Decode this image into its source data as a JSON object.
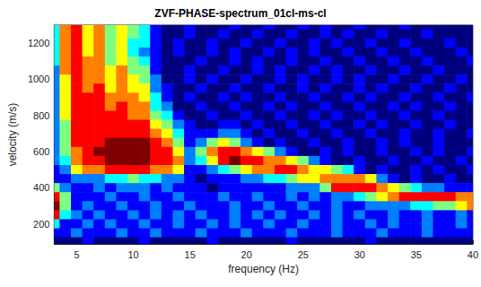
{
  "chart_data": {
    "type": "heatmap",
    "title": "ZVF-PHASE-spectrum_01cl-ms-cl",
    "x_label": "frequency (Hz)",
    "y_label": "velocity (m/s)",
    "x": [
      3,
      4,
      5,
      6,
      7,
      8,
      9,
      10,
      11,
      12,
      13,
      14,
      15,
      16,
      17,
      18,
      19,
      20,
      21,
      22,
      23,
      24,
      25,
      26,
      27,
      28,
      29,
      30,
      31,
      32,
      33,
      34,
      35,
      36,
      37,
      38,
      39,
      40
    ],
    "y": [
      1300,
      1250,
      1200,
      1150,
      1100,
      1050,
      1000,
      950,
      900,
      850,
      800,
      750,
      700,
      650,
      600,
      550,
      500,
      450,
      400,
      350,
      300,
      250,
      200,
      150,
      100
    ],
    "values": [
      [
        5,
        8,
        9,
        7,
        8,
        6,
        7,
        6,
        5,
        3,
        2,
        2,
        3,
        2,
        2,
        2,
        3,
        2,
        2,
        3,
        2,
        2,
        3,
        2,
        3,
        2,
        2,
        3,
        2,
        2,
        2,
        3,
        2,
        2,
        2,
        2,
        2,
        2
      ],
      [
        5,
        8,
        9,
        7,
        8,
        6,
        7,
        6,
        5,
        3,
        2,
        2,
        3,
        2,
        2,
        3,
        2,
        2,
        3,
        2,
        2,
        3,
        2,
        2,
        3,
        2,
        3,
        2,
        2,
        3,
        2,
        2,
        2,
        3,
        2,
        2,
        2,
        2
      ],
      [
        5,
        8,
        9,
        7,
        8,
        6,
        7,
        5,
        5,
        3,
        2,
        3,
        2,
        2,
        3,
        2,
        2,
        3,
        2,
        2,
        3,
        2,
        2,
        3,
        2,
        3,
        2,
        2,
        3,
        2,
        2,
        3,
        2,
        2,
        2,
        3,
        2,
        2
      ],
      [
        5,
        8,
        9,
        7,
        8,
        6,
        7,
        5,
        4,
        3,
        2,
        3,
        2,
        2,
        3,
        2,
        3,
        2,
        2,
        3,
        2,
        3,
        2,
        3,
        2,
        2,
        3,
        2,
        2,
        3,
        2,
        2,
        3,
        2,
        2,
        2,
        3,
        2
      ],
      [
        5,
        8,
        9,
        8,
        8,
        6,
        7,
        6,
        5,
        3,
        2,
        2,
        2,
        3,
        2,
        2,
        3,
        2,
        3,
        2,
        2,
        3,
        2,
        2,
        3,
        2,
        2,
        3,
        2,
        2,
        3,
        2,
        2,
        3,
        2,
        2,
        2,
        3
      ],
      [
        4,
        8,
        9,
        8,
        8,
        7,
        8,
        6,
        6,
        3,
        2,
        2,
        3,
        2,
        2,
        3,
        2,
        2,
        3,
        2,
        3,
        2,
        2,
        3,
        2,
        3,
        2,
        2,
        3,
        2,
        2,
        3,
        2,
        2,
        3,
        2,
        2,
        2
      ],
      [
        4,
        7,
        9,
        8,
        8,
        7,
        8,
        7,
        6,
        4,
        2,
        2,
        3,
        2,
        3,
        2,
        2,
        3,
        2,
        2,
        3,
        2,
        3,
        2,
        2,
        3,
        2,
        3,
        2,
        2,
        3,
        2,
        2,
        3,
        2,
        2,
        3,
        2
      ],
      [
        4,
        7,
        9,
        8,
        9,
        7,
        8,
        7,
        7,
        4,
        3,
        2,
        2,
        3,
        2,
        2,
        3,
        2,
        2,
        3,
        2,
        2,
        3,
        2,
        3,
        2,
        2,
        3,
        2,
        3,
        2,
        2,
        3,
        2,
        2,
        3,
        2,
        2
      ],
      [
        4,
        7,
        9,
        9,
        9,
        8,
        8,
        8,
        7,
        5,
        3,
        2,
        3,
        2,
        2,
        3,
        2,
        3,
        2,
        2,
        3,
        2,
        2,
        3,
        2,
        2,
        3,
        2,
        3,
        2,
        2,
        3,
        2,
        2,
        3,
        2,
        2,
        3
      ],
      [
        4,
        7,
        9,
        9,
        9,
        8,
        9,
        8,
        8,
        5,
        4,
        2,
        2,
        3,
        2,
        2,
        3,
        2,
        2,
        3,
        2,
        3,
        2,
        2,
        3,
        2,
        2,
        3,
        2,
        2,
        3,
        2,
        3,
        2,
        2,
        3,
        2,
        2
      ],
      [
        4,
        7,
        9,
        9,
        9,
        9,
        9,
        8,
        8,
        6,
        5,
        3,
        2,
        2,
        3,
        2,
        2,
        3,
        2,
        2,
        3,
        2,
        2,
        3,
        2,
        3,
        2,
        2,
        3,
        2,
        2,
        3,
        2,
        2,
        3,
        2,
        2,
        2
      ],
      [
        4,
        6,
        9,
        9,
        9,
        9,
        9,
        9,
        9,
        7,
        6,
        4,
        3,
        2,
        2,
        3,
        3,
        2,
        3,
        2,
        2,
        3,
        2,
        2,
        3,
        2,
        2,
        3,
        2,
        3,
        2,
        2,
        3,
        2,
        2,
        3,
        2,
        2
      ],
      [
        4,
        6,
        9,
        9,
        9,
        9,
        9,
        9,
        9,
        8,
        7,
        5,
        3,
        3,
        3,
        4,
        4,
        3,
        2,
        3,
        2,
        2,
        3,
        2,
        2,
        3,
        2,
        2,
        3,
        2,
        2,
        3,
        2,
        2,
        3,
        2,
        2,
        3
      ],
      [
        4,
        6,
        9,
        9,
        9,
        10,
        10,
        10,
        10,
        9,
        8,
        6,
        3,
        4,
        6,
        7,
        6,
        4,
        3,
        2,
        3,
        2,
        2,
        3,
        2,
        2,
        3,
        2,
        2,
        3,
        2,
        3,
        2,
        2,
        3,
        2,
        2,
        2
      ],
      [
        4,
        6,
        8,
        9,
        10,
        10,
        10,
        10,
        10,
        9,
        9,
        7,
        4,
        6,
        8,
        9,
        9,
        8,
        7,
        6,
        4,
        3,
        2,
        2,
        3,
        2,
        3,
        2,
        2,
        3,
        2,
        2,
        3,
        2,
        3,
        2,
        2,
        3
      ],
      [
        4,
        5,
        8,
        9,
        9,
        10,
        10,
        10,
        10,
        9,
        9,
        8,
        4,
        5,
        7,
        9,
        10,
        9,
        9,
        8,
        8,
        7,
        6,
        4,
        3,
        2,
        2,
        3,
        2,
        2,
        3,
        2,
        2,
        3,
        2,
        2,
        3,
        2
      ],
      [
        3,
        4,
        7,
        8,
        8,
        9,
        9,
        9,
        9,
        8,
        8,
        7,
        3,
        3,
        4,
        5,
        6,
        7,
        8,
        8,
        9,
        9,
        8,
        7,
        7,
        6,
        5,
        3,
        2,
        3,
        2,
        2,
        3,
        2,
        3,
        2,
        2,
        3
      ],
      [
        3,
        3,
        4,
        4,
        4,
        5,
        5,
        6,
        5,
        5,
        4,
        4,
        3,
        2,
        3,
        3,
        3,
        4,
        4,
        5,
        5,
        6,
        7,
        7,
        8,
        8,
        8,
        8,
        7,
        4,
        3,
        2,
        3,
        2,
        2,
        3,
        2,
        2
      ],
      [
        6,
        4,
        3,
        3,
        4,
        3,
        4,
        4,
        4,
        3,
        4,
        3,
        3,
        3,
        2,
        3,
        3,
        3,
        3,
        3,
        3,
        4,
        4,
        4,
        6,
        9,
        9,
        9,
        9,
        8,
        7,
        6,
        5,
        4,
        4,
        3,
        3,
        3
      ],
      [
        9,
        6,
        3,
        3,
        3,
        4,
        3,
        3,
        4,
        3,
        3,
        4,
        3,
        3,
        3,
        4,
        3,
        3,
        4,
        3,
        3,
        4,
        3,
        4,
        3,
        4,
        4,
        5,
        6,
        7,
        8,
        9,
        9,
        9,
        9,
        9,
        8,
        8
      ],
      [
        10,
        6,
        3,
        4,
        3,
        3,
        4,
        3,
        3,
        4,
        3,
        3,
        4,
        3,
        3,
        3,
        4,
        3,
        3,
        4,
        3,
        3,
        4,
        3,
        3,
        4,
        3,
        3,
        4,
        4,
        4,
        4,
        5,
        5,
        6,
        6,
        7,
        8
      ],
      [
        9,
        5,
        4,
        3,
        4,
        3,
        3,
        4,
        3,
        4,
        3,
        4,
        3,
        4,
        3,
        3,
        4,
        3,
        4,
        3,
        4,
        3,
        3,
        4,
        3,
        4,
        3,
        4,
        3,
        3,
        4,
        3,
        3,
        4,
        3,
        3,
        4,
        3
      ],
      [
        5,
        3,
        3,
        4,
        3,
        4,
        3,
        3,
        4,
        3,
        3,
        4,
        3,
        3,
        4,
        3,
        4,
        3,
        3,
        4,
        3,
        3,
        4,
        3,
        3,
        4,
        3,
        3,
        4,
        3,
        4,
        3,
        3,
        4,
        3,
        3,
        4,
        3
      ],
      [
        3,
        3,
        4,
        3,
        3,
        3,
        4,
        3,
        3,
        4,
        3,
        3,
        3,
        4,
        3,
        3,
        3,
        4,
        3,
        3,
        3,
        4,
        3,
        3,
        3,
        4,
        3,
        3,
        3,
        4,
        3,
        3,
        3,
        4,
        3,
        3,
        3,
        3
      ],
      [
        2,
        2,
        2,
        3,
        2,
        2,
        2,
        2,
        3,
        2,
        2,
        2,
        2,
        2,
        3,
        2,
        2,
        2,
        2,
        2,
        2,
        3,
        2,
        2,
        2,
        2,
        2,
        2,
        3,
        2,
        2,
        2,
        2,
        2,
        2,
        2,
        2,
        2
      ]
    ],
    "xlim": [
      3,
      40
    ],
    "ylim": [
      90,
      1300
    ],
    "xticks": [
      5,
      10,
      15,
      20,
      25,
      30,
      35,
      40
    ],
    "yticks": [
      200,
      400,
      600,
      800,
      1000,
      1200
    ]
  }
}
